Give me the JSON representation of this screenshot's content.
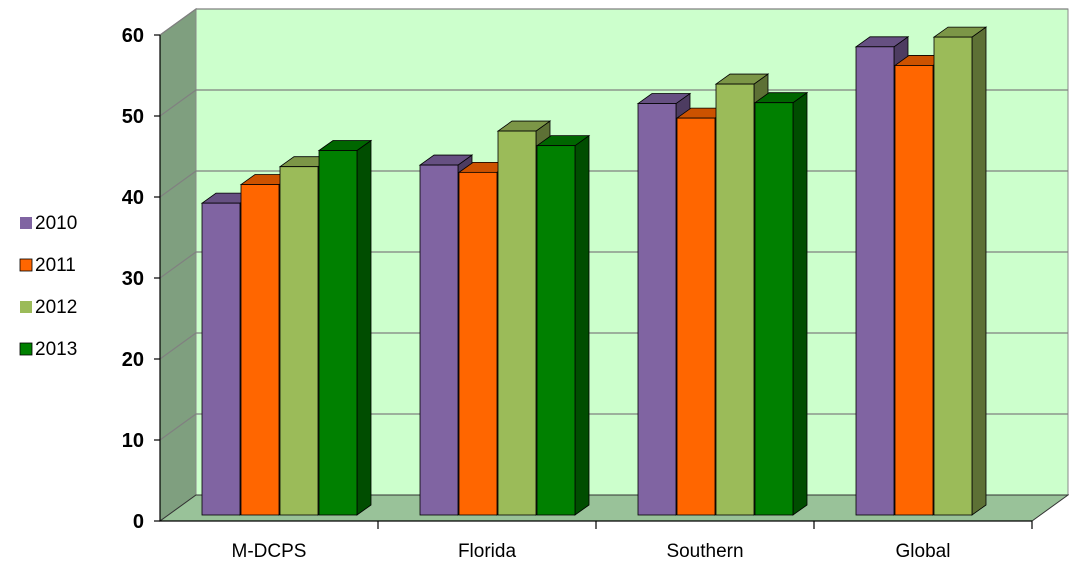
{
  "chart_data": {
    "type": "bar",
    "categories": [
      "M-DCPS",
      "Florida",
      "Southern",
      "Global"
    ],
    "series": [
      {
        "name": "2010",
        "values": [
          38.5,
          43.2,
          50.8,
          57.8
        ],
        "color": "#8064a2"
      },
      {
        "name": "2011",
        "values": [
          40.8,
          42.3,
          49.0,
          55.5
        ],
        "color": "#ff6600"
      },
      {
        "name": "2012",
        "values": [
          43.0,
          47.4,
          53.2,
          59.0
        ],
        "color": "#9bbb59"
      },
      {
        "name": "2013",
        "values": [
          45.0,
          45.6,
          50.9,
          null
        ],
        "color": "#008000"
      }
    ],
    "title": "",
    "xlabel": "",
    "ylabel": "",
    "ylim": [
      0,
      60
    ],
    "yticks": [
      "0",
      "10",
      "20",
      "30",
      "40",
      "50",
      "60"
    ],
    "grid": true,
    "legend_position": "left",
    "style": "3d-clustered-column",
    "colors": {
      "wall": "#ccffcc",
      "side_wall": "#7f9f7f",
      "floor": "#99c299",
      "grid": "#808080"
    }
  }
}
